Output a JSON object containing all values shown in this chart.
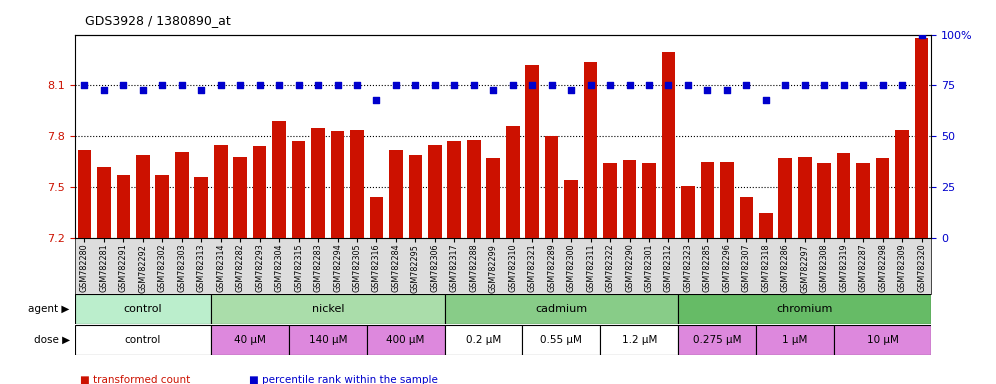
{
  "title": "GDS3928 / 1380890_at",
  "gsm_labels": [
    "GSM782280",
    "GSM782281",
    "GSM782291",
    "GSM782292",
    "GSM782302",
    "GSM782303",
    "GSM782313",
    "GSM782314",
    "GSM782282",
    "GSM782293",
    "GSM782304",
    "GSM782315",
    "GSM782283",
    "GSM782294",
    "GSM782305",
    "GSM782316",
    "GSM782284",
    "GSM782295",
    "GSM782306",
    "GSM782317",
    "GSM782288",
    "GSM782299",
    "GSM782310",
    "GSM782321",
    "GSM782289",
    "GSM782300",
    "GSM782311",
    "GSM782322",
    "GSM782290",
    "GSM782301",
    "GSM782312",
    "GSM782323",
    "GSM782285",
    "GSM782296",
    "GSM782307",
    "GSM782318",
    "GSM782286",
    "GSM782297",
    "GSM782308",
    "GSM782319",
    "GSM782287",
    "GSM782298",
    "GSM782309",
    "GSM782320"
  ],
  "bar_values": [
    7.72,
    7.62,
    7.57,
    7.69,
    7.57,
    7.71,
    7.56,
    7.75,
    7.68,
    7.74,
    7.89,
    7.77,
    7.85,
    7.83,
    7.84,
    7.44,
    7.72,
    7.69,
    7.75,
    7.77,
    7.78,
    7.67,
    7.86,
    8.22,
    7.8,
    7.54,
    8.24,
    7.64,
    7.66,
    7.64,
    8.3,
    7.51,
    7.65,
    7.65,
    7.44,
    7.35,
    7.67,
    7.68,
    7.64,
    7.7,
    7.64,
    7.67,
    7.84,
    8.38
  ],
  "percentile_values": [
    75,
    73,
    75,
    73,
    75,
    75,
    73,
    75,
    75,
    75,
    75,
    75,
    75,
    75,
    75,
    68,
    75,
    75,
    75,
    75,
    75,
    73,
    75,
    75,
    75,
    73,
    75,
    75,
    75,
    75,
    75,
    75,
    73,
    73,
    75,
    68,
    75,
    75,
    75,
    75,
    75,
    75,
    75,
    100
  ],
  "ylim_left": [
    7.2,
    8.4
  ],
  "ylim_right": [
    0,
    100
  ],
  "yticks_left": [
    7.2,
    7.5,
    7.8,
    8.1
  ],
  "yticks_right": [
    0,
    25,
    50,
    75,
    100
  ],
  "bar_color": "#cc1100",
  "dot_color": "#0000cc",
  "agent_groups": [
    {
      "label": "control",
      "start": 0,
      "end": 7,
      "color": "#bbeecc"
    },
    {
      "label": "nickel",
      "start": 7,
      "end": 19,
      "color": "#99dd99"
    },
    {
      "label": "cadmium",
      "start": 19,
      "end": 31,
      "color": "#66cc66"
    },
    {
      "label": "chromium",
      "start": 31,
      "end": 44,
      "color": "#55bb55"
    }
  ],
  "dose_groups": [
    {
      "label": "control",
      "start": 0,
      "end": 7,
      "color": "#ffffff"
    },
    {
      "label": "40 μM",
      "start": 7,
      "end": 11,
      "color": "#dd88dd"
    },
    {
      "label": "140 μM",
      "start": 11,
      "end": 15,
      "color": "#dd88dd"
    },
    {
      "label": "400 μM",
      "start": 15,
      "end": 19,
      "color": "#dd88dd"
    },
    {
      "label": "0.2 μM",
      "start": 19,
      "end": 23,
      "color": "#ffffff"
    },
    {
      "label": "0.55 μM",
      "start": 23,
      "end": 27,
      "color": "#ffffff"
    },
    {
      "label": "1.2 μM",
      "start": 27,
      "end": 31,
      "color": "#ffffff"
    },
    {
      "label": "0.275 μM",
      "start": 31,
      "end": 35,
      "color": "#dd88dd"
    },
    {
      "label": "1 μM",
      "start": 35,
      "end": 39,
      "color": "#dd88dd"
    },
    {
      "label": "10 μM",
      "start": 39,
      "end": 44,
      "color": "#dd88dd"
    }
  ],
  "legend_items": [
    {
      "color": "#cc1100",
      "label": "transformed count"
    },
    {
      "color": "#0000cc",
      "label": "percentile rank within the sample"
    }
  ],
  "fig_bg": "#ffffff",
  "plot_bg": "#ffffff",
  "xtick_bg": "#dddddd"
}
